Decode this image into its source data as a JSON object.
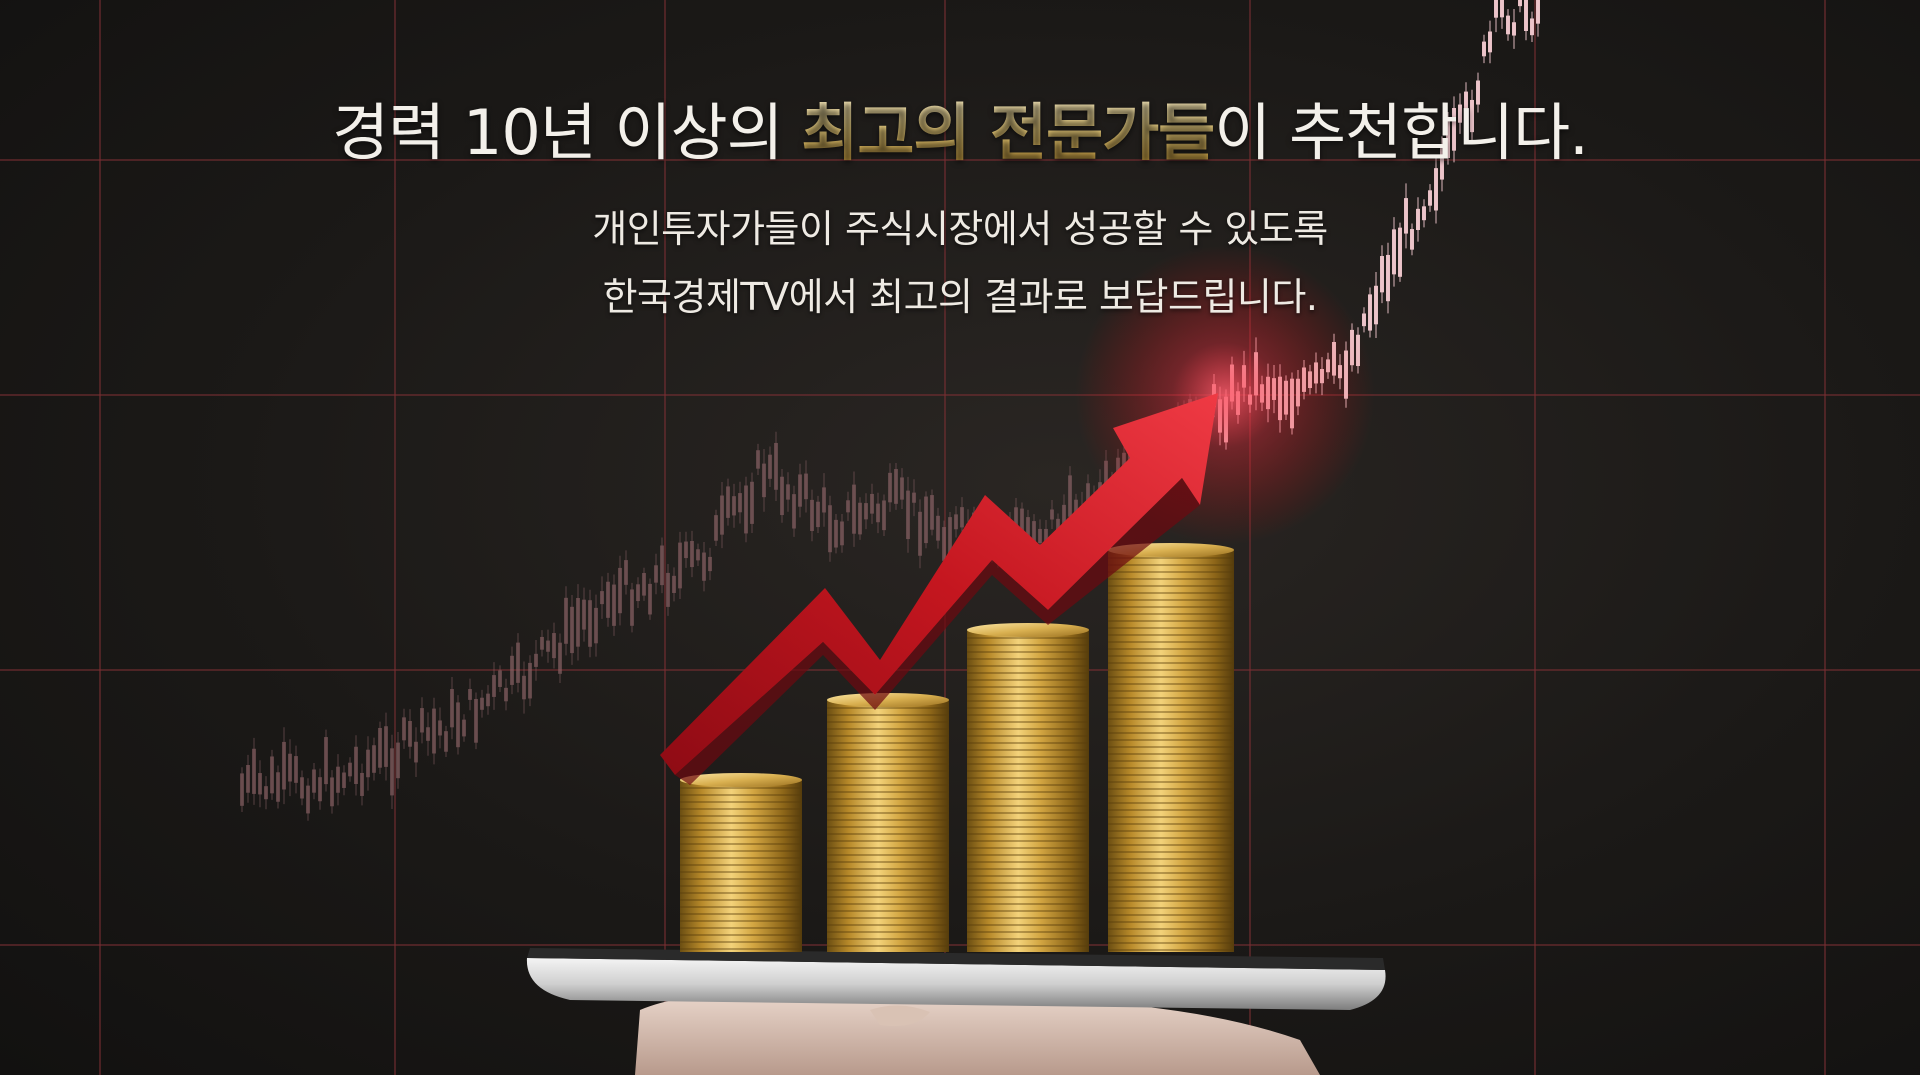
{
  "headline": {
    "part1": "경력 10년 이상의 ",
    "highlight": "최고의 전문가들",
    "part2": "이 추천합니다."
  },
  "subtitle": {
    "line1": "개인투자가들이 주식시장에서 성공할 수 있도록",
    "line2": "한국경제TV에서 최고의 결과로 보답드립니다."
  },
  "colors": {
    "background": "#1b1917",
    "gold": "#d9b75a",
    "arrow": "#c1121f",
    "grid": "#8a3a3a"
  },
  "icons": [
    "coin-stack-icon",
    "trend-arrow-icon",
    "tablet-icon",
    "hand-icon"
  ]
}
